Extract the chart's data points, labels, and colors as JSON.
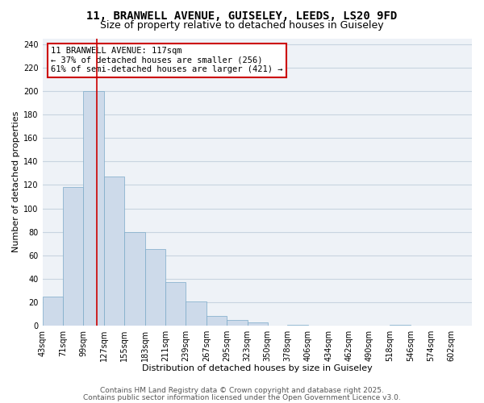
{
  "title_line1": "11, BRANWELL AVENUE, GUISELEY, LEEDS, LS20 9FD",
  "title_line2": "Size of property relative to detached houses in Guiseley",
  "xlabel": "Distribution of detached houses by size in Guiseley",
  "ylabel": "Number of detached properties",
  "bar_color": "#cddaea",
  "bar_edge_color": "#7aaac8",
  "grid_color": "#c8d4e0",
  "background_color": "#eef2f7",
  "bin_labels": [
    "43sqm",
    "71sqm",
    "99sqm",
    "127sqm",
    "155sqm",
    "183sqm",
    "211sqm",
    "239sqm",
    "267sqm",
    "295sqm",
    "323sqm",
    "350sqm",
    "378sqm",
    "406sqm",
    "434sqm",
    "462sqm",
    "490sqm",
    "518sqm",
    "546sqm",
    "574sqm",
    "602sqm"
  ],
  "bin_edges": [
    43,
    71,
    99,
    127,
    155,
    183,
    211,
    239,
    267,
    295,
    323,
    350,
    378,
    406,
    434,
    462,
    490,
    518,
    546,
    574,
    602
  ],
  "bar_heights": [
    25,
    118,
    200,
    127,
    80,
    65,
    37,
    21,
    8,
    5,
    3,
    0,
    1,
    0,
    0,
    0,
    0,
    1,
    0,
    0
  ],
  "ylim": [
    0,
    245
  ],
  "yticks": [
    0,
    20,
    40,
    60,
    80,
    100,
    120,
    140,
    160,
    180,
    200,
    220,
    240
  ],
  "property_size": 117,
  "vline_color": "#cc0000",
  "ann_line1": "11 BRANWELL AVENUE: 117sqm",
  "ann_line2": "← 37% of detached houses are smaller (256)",
  "ann_line3": "61% of semi-detached houses are larger (421) →",
  "footer_line1": "Contains HM Land Registry data © Crown copyright and database right 2025.",
  "footer_line2": "Contains public sector information licensed under the Open Government Licence v3.0.",
  "title_fontsize": 10,
  "subtitle_fontsize": 9,
  "axis_label_fontsize": 8,
  "tick_fontsize": 7,
  "annotation_fontsize": 7.5,
  "footer_fontsize": 6.5
}
